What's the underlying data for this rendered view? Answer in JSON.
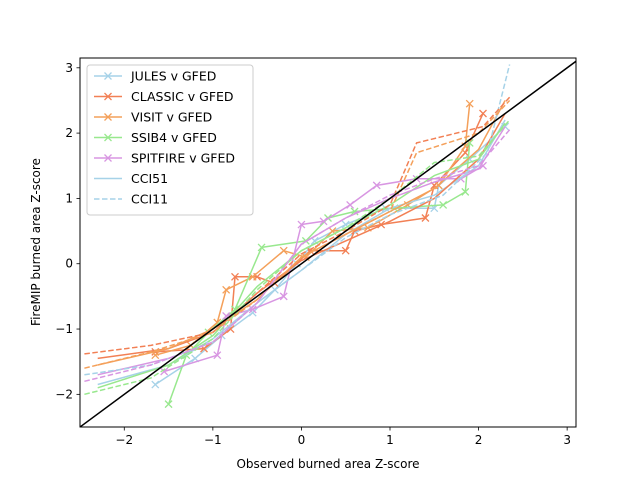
{
  "chart_data": {
    "type": "line",
    "title": "",
    "xlabel": "Observed burned area Z-score",
    "ylabel": "FireMIP burned area Z-score",
    "xlim": [
      -2.5,
      3.1
    ],
    "ylim": [
      -2.5,
      3.15
    ],
    "xticks": [
      -2,
      -1,
      0,
      1,
      2,
      3
    ],
    "yticks": [
      -2,
      -1,
      0,
      1,
      2,
      3
    ],
    "xtick_labels": [
      "−2",
      "−1",
      "0",
      "1",
      "2",
      "3"
    ],
    "ytick_labels": [
      "−2",
      "−1",
      "0",
      "1",
      "2",
      "3"
    ],
    "legend_position": "top-left",
    "legend": [
      {
        "label": "JULES v GFED",
        "color": "#a6d2e8",
        "style": "solid",
        "marker": "x"
      },
      {
        "label": "CLASSIC v GFED",
        "color": "#f28055",
        "style": "solid",
        "marker": "x"
      },
      {
        "label": "VISIT v GFED",
        "color": "#f4a05a",
        "style": "solid",
        "marker": "x"
      },
      {
        "label": "SSIB4 v GFED",
        "color": "#98e88e",
        "style": "solid",
        "marker": "x"
      },
      {
        "label": "SPITFIRE v GFED",
        "color": "#d896e2",
        "style": "solid",
        "marker": "x"
      },
      {
        "label": "CCI51",
        "color": "#a6d2e8",
        "style": "solid",
        "marker": "none"
      },
      {
        "label": "CCI11",
        "color": "#a6d2e8",
        "style": "dashed",
        "marker": "none"
      }
    ],
    "reference_line": {
      "label": "1:1",
      "color": "#000000",
      "points": [
        [
          -2.5,
          -2.5
        ],
        [
          3.1,
          3.1
        ]
      ]
    },
    "series": [
      {
        "name": "JULES v GFED",
        "color": "#a6d2e8",
        "style": "solid",
        "markers": true,
        "x": [
          -1.65,
          -1.2,
          -0.9,
          -0.55,
          -0.3,
          -0.05,
          0.15,
          0.5,
          0.95,
          1.5,
          1.55,
          1.9,
          2.3
        ],
        "y": [
          -1.85,
          -1.45,
          -1.1,
          -0.75,
          -0.4,
          0.0,
          0.35,
          0.6,
          0.85,
          0.85,
          1.2,
          1.6,
          2.1
        ]
      },
      {
        "name": "CLASSIC v GFED",
        "color": "#f28055",
        "style": "solid",
        "markers": true,
        "x": [
          -1.65,
          -1.1,
          -0.8,
          -0.75,
          -0.5,
          -0.3,
          0.1,
          0.5,
          0.6,
          0.9,
          1.4,
          1.5,
          1.85,
          2.05
        ],
        "y": [
          -1.35,
          -1.3,
          -1.0,
          -0.2,
          -0.2,
          -0.3,
          0.2,
          0.2,
          0.5,
          0.6,
          0.7,
          1.2,
          1.7,
          2.3
        ]
      },
      {
        "name": "VISIT v GFED",
        "color": "#f4a05a",
        "style": "solid",
        "markers": true,
        "x": [
          -1.65,
          -1.25,
          -0.95,
          -0.85,
          -0.55,
          -0.2,
          0.05,
          0.35,
          0.75,
          1.2,
          1.55,
          1.85,
          1.9
        ],
        "y": [
          -1.4,
          -1.25,
          -0.9,
          -0.4,
          -0.2,
          0.2,
          0.1,
          0.5,
          0.55,
          0.9,
          1.2,
          1.8,
          2.45
        ]
      },
      {
        "name": "SSIB4 v GFED",
        "color": "#98e88e",
        "style": "solid",
        "markers": true,
        "x": [
          -1.5,
          -1.3,
          -1.05,
          -0.75,
          -0.45,
          0.05,
          0.3,
          0.6,
          1.05,
          1.6,
          1.85,
          1.9
        ],
        "y": [
          -2.15,
          -1.4,
          -1.05,
          -0.7,
          0.25,
          0.35,
          0.7,
          0.8,
          0.85,
          0.9,
          1.1,
          1.85
        ]
      },
      {
        "name": "SPITFIRE v GFED",
        "color": "#d896e2",
        "style": "solid",
        "markers": true,
        "x": [
          -1.55,
          -0.95,
          -0.85,
          -0.55,
          -0.2,
          0.0,
          0.25,
          0.55,
          0.85,
          1.3,
          1.8,
          2.05
        ],
        "y": [
          -1.65,
          -1.4,
          -0.8,
          -0.7,
          -0.5,
          0.6,
          0.65,
          0.9,
          1.2,
          1.3,
          1.3,
          1.5
        ]
      },
      {
        "name": "CCI51 (JULES)",
        "color": "#a6d2e8",
        "style": "solid",
        "markers": false,
        "x": [
          -2.3,
          -1.5,
          -1.0,
          -0.5,
          0.0,
          0.5,
          1.0,
          1.5,
          2.0,
          2.3
        ],
        "y": [
          -1.85,
          -1.55,
          -1.15,
          -0.6,
          -0.1,
          0.45,
          0.85,
          1.05,
          1.5,
          2.2
        ]
      },
      {
        "name": "CCI51 (CLASSIC)",
        "color": "#f28055",
        "style": "solid",
        "markers": false,
        "x": [
          -2.3,
          -1.5,
          -1.0,
          -0.5,
          0.0,
          0.5,
          1.0,
          1.5,
          2.0,
          2.3
        ],
        "y": [
          -1.45,
          -1.3,
          -1.05,
          -0.45,
          0.05,
          0.35,
          0.65,
          1.0,
          1.6,
          2.3
        ]
      },
      {
        "name": "CCI51 (VISIT)",
        "color": "#f4a05a",
        "style": "solid",
        "markers": false,
        "x": [
          -2.3,
          -1.5,
          -1.0,
          -0.5,
          0.0,
          0.5,
          1.0,
          1.5,
          2.0,
          2.3
        ],
        "y": [
          -1.55,
          -1.3,
          -1.0,
          -0.55,
          0.1,
          0.45,
          0.8,
          1.15,
          1.75,
          2.5
        ]
      },
      {
        "name": "CCI51 (SSIB4)",
        "color": "#98e88e",
        "style": "solid",
        "markers": false,
        "x": [
          -2.3,
          -1.5,
          -1.0,
          -0.5,
          0.0,
          0.5,
          1.0,
          1.5,
          2.0,
          2.3
        ],
        "y": [
          -1.9,
          -1.55,
          -1.1,
          -0.35,
          0.2,
          0.55,
          0.9,
          1.35,
          1.6,
          2.15
        ]
      },
      {
        "name": "CCI51 (SPITFIRE)",
        "color": "#d896e2",
        "style": "solid",
        "markers": false,
        "x": [
          -2.3,
          -1.5,
          -1.0,
          -0.5,
          0.0,
          0.5,
          1.0,
          1.5,
          2.0,
          2.3
        ],
        "y": [
          -1.7,
          -1.45,
          -1.2,
          -0.6,
          0.3,
          0.7,
          1.0,
          1.25,
          1.45,
          2.1
        ]
      },
      {
        "name": "CCI11 (JULES)",
        "color": "#a6d2e8",
        "style": "dashed",
        "markers": false,
        "x": [
          -2.45,
          -1.7,
          -1.0,
          -0.5,
          0.0,
          0.5,
          1.0,
          1.6,
          2.1,
          2.35
        ],
        "y": [
          -1.7,
          -1.55,
          -1.2,
          -0.6,
          -0.1,
          0.4,
          0.75,
          1.05,
          1.7,
          3.05
        ]
      },
      {
        "name": "CCI11 (CLASSIC)",
        "color": "#f28055",
        "style": "dashed",
        "markers": false,
        "x": [
          -2.45,
          -1.7,
          -1.0,
          -0.5,
          0.0,
          0.5,
          1.0,
          1.3,
          2.05,
          2.35
        ],
        "y": [
          -1.38,
          -1.25,
          -1.05,
          -0.45,
          0.15,
          0.5,
          0.9,
          1.85,
          2.1,
          2.55
        ]
      },
      {
        "name": "CCI11 (VISIT)",
        "color": "#f4a05a",
        "style": "dashed",
        "markers": false,
        "x": [
          -2.45,
          -1.7,
          -1.0,
          -0.5,
          0.0,
          0.5,
          1.0,
          1.3,
          2.0,
          2.35
        ],
        "y": [
          -1.6,
          -1.35,
          -1.05,
          -0.55,
          0.1,
          0.45,
          0.8,
          1.7,
          2.0,
          2.5
        ]
      },
      {
        "name": "CCI11 (SSIB4)",
        "color": "#98e88e",
        "style": "dashed",
        "markers": false,
        "x": [
          -2.45,
          -1.7,
          -1.0,
          -0.5,
          0.0,
          0.5,
          1.0,
          1.5,
          2.0,
          2.35
        ],
        "y": [
          -2.0,
          -1.75,
          -1.15,
          -0.4,
          0.2,
          0.55,
          1.0,
          1.55,
          1.65,
          2.2
        ]
      },
      {
        "name": "CCI11 (SPITFIRE)",
        "color": "#d896e2",
        "style": "dashed",
        "markers": false,
        "x": [
          -2.45,
          -1.7,
          -1.0,
          -0.5,
          0.0,
          0.5,
          1.0,
          1.5,
          2.0,
          2.35
        ],
        "y": [
          -1.8,
          -1.55,
          -1.2,
          -0.6,
          0.3,
          0.7,
          1.05,
          1.3,
          1.5,
          2.05
        ]
      }
    ]
  }
}
